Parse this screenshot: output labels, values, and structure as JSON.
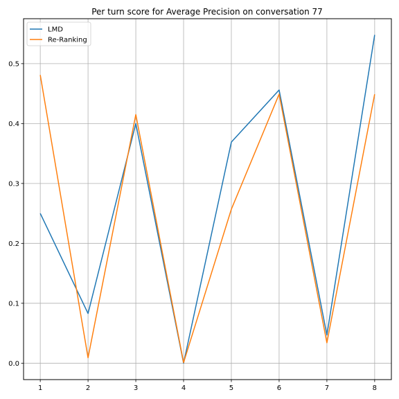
{
  "chart_data": {
    "type": "line",
    "title": "Per turn score for Average Precision on conversation 77",
    "xlabel": "",
    "ylabel": "",
    "x": [
      1,
      2,
      3,
      4,
      5,
      6,
      7,
      8
    ],
    "xlim": [
      0.65,
      8.35
    ],
    "ylim": [
      -0.0274,
      0.575
    ],
    "xticks": [
      1,
      2,
      3,
      4,
      5,
      6,
      7,
      8
    ],
    "yticks": [
      0.0,
      0.1,
      0.2,
      0.3,
      0.4,
      0.5
    ],
    "ytick_labels": [
      "0.0",
      "0.1",
      "0.2",
      "0.3",
      "0.4",
      "0.5"
    ],
    "grid": true,
    "legend_position": "top-left",
    "series": [
      {
        "name": "LMD",
        "color": "#1f77b4",
        "values": [
          0.25,
          0.083,
          0.4,
          0.0,
          0.369,
          0.456,
          0.047,
          0.548
        ]
      },
      {
        "name": "Re-Ranking",
        "color": "#ff7f0e",
        "values": [
          0.481,
          0.009,
          0.415,
          0.001,
          0.257,
          0.449,
          0.034,
          0.449
        ]
      }
    ]
  }
}
